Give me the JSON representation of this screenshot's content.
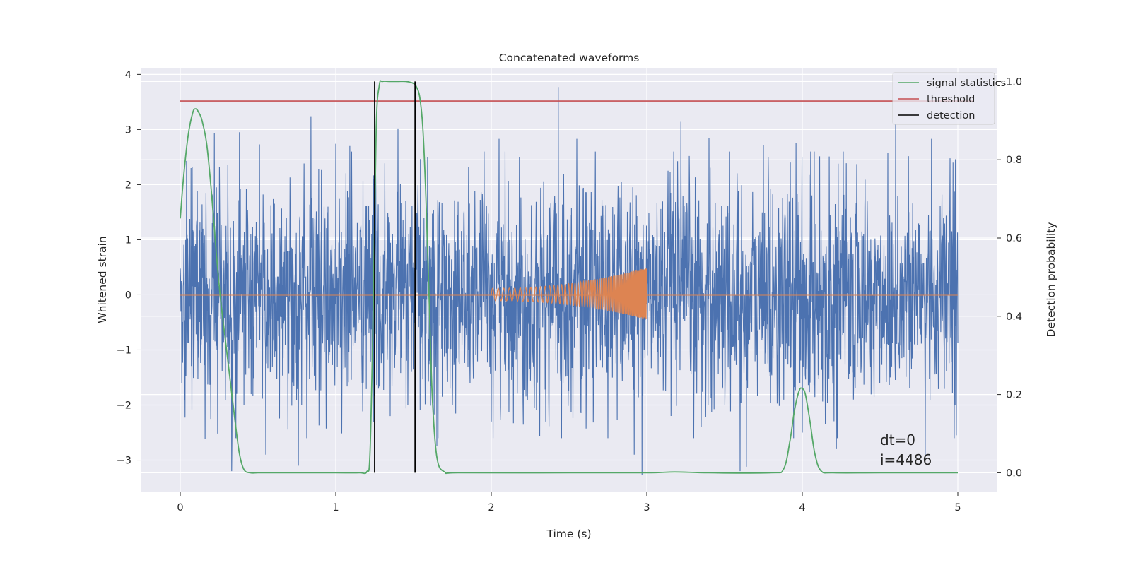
{
  "chart_data": {
    "type": "line",
    "title": "Concatenated waveforms",
    "xlabel": "Time (s)",
    "ylabel": "Whitened strain",
    "y2label": "Detection probability",
    "xlim": [
      -0.25,
      5.25
    ],
    "ylim": [
      -3.57,
      4.12
    ],
    "y2lim": [
      -0.048,
      1.035
    ],
    "x_ticks": [
      0,
      1,
      2,
      3,
      4,
      5
    ],
    "x_tick_labels": [
      "0",
      "1",
      "2",
      "3",
      "4",
      "5"
    ],
    "y_ticks": [
      -3,
      -2,
      -1,
      0,
      1,
      2,
      3,
      4
    ],
    "y_tick_labels": [
      "−3",
      "−2",
      "−1",
      "0",
      "1",
      "2",
      "3",
      "4"
    ],
    "y2_ticks": [
      0.0,
      0.2,
      0.4,
      0.6,
      0.8,
      1.0
    ],
    "y2_tick_labels": [
      "0.0",
      "0.2",
      "0.4",
      "0.6",
      "0.8",
      "1.0"
    ],
    "grid": true,
    "legend_position": "top-right",
    "noise": {
      "color": "#4c72b0",
      "x_range": [
        0,
        5
      ],
      "typical_amplitude": 1.0,
      "max": 3.77,
      "min": -3.27,
      "peaks": [
        {
          "x": 0.04,
          "y": 2.43
        },
        {
          "x": 0.07,
          "y": 2.3
        },
        {
          "x": 0.22,
          "y": 2.93
        },
        {
          "x": 0.38,
          "y": 2.95
        },
        {
          "x": 0.51,
          "y": 2.73
        },
        {
          "x": 0.84,
          "y": 3.24
        },
        {
          "x": 1.0,
          "y": 2.74
        },
        {
          "x": 1.09,
          "y": 2.7
        },
        {
          "x": 1.24,
          "y": 2.1
        },
        {
          "x": 1.4,
          "y": 3.02
        },
        {
          "x": 2.05,
          "y": 2.83
        },
        {
          "x": 2.43,
          "y": 3.77
        },
        {
          "x": 2.55,
          "y": 2.83
        },
        {
          "x": 3.22,
          "y": 3.14
        },
        {
          "x": 3.4,
          "y": 2.84
        },
        {
          "x": 3.75,
          "y": 2.72
        },
        {
          "x": 3.96,
          "y": 2.75
        },
        {
          "x": 4.23,
          "y": 2.38
        },
        {
          "x": 4.6,
          "y": 3.1
        },
        {
          "x": 4.83,
          "y": 2.83
        },
        {
          "x": 4.97,
          "y": 2.4
        }
      ],
      "troughs": [
        {
          "x": 0.01,
          "y": -1.6
        },
        {
          "x": 0.16,
          "y": -2.0
        },
        {
          "x": 0.16,
          "y": -2.62
        },
        {
          "x": 0.33,
          "y": -3.2
        },
        {
          "x": 0.55,
          "y": -2.9
        },
        {
          "x": 0.76,
          "y": -3.1
        },
        {
          "x": 0.78,
          "y": -2.0
        },
        {
          "x": 1.35,
          "y": -2.2
        },
        {
          "x": 1.65,
          "y": -2.75
        },
        {
          "x": 2.0,
          "y": -2.3
        },
        {
          "x": 2.35,
          "y": -2.3
        },
        {
          "x": 2.92,
          "y": -2.9
        },
        {
          "x": 2.97,
          "y": -3.27
        },
        {
          "x": 3.35,
          "y": -2.4
        },
        {
          "x": 3.6,
          "y": -3.2
        },
        {
          "x": 3.64,
          "y": -3.12
        },
        {
          "x": 4.0,
          "y": -2.5
        },
        {
          "x": 4.22,
          "y": -2.8
        },
        {
          "x": 4.79,
          "y": -2.9
        },
        {
          "x": 4.99,
          "y": -2.55
        }
      ]
    },
    "chirp": {
      "color": "#dd8452",
      "x_range": [
        2.0,
        3.0
      ],
      "start_amplitude": 0.12,
      "end_max": 0.5,
      "end_min": -0.45,
      "baseline": 0
    },
    "series": [
      {
        "name": "signal statistics",
        "color": "#55a868",
        "axis": "right",
        "x": [
          0,
          0.02,
          0.05,
          0.08,
          0.1,
          0.12,
          0.14,
          0.17,
          0.2,
          0.23,
          0.26,
          0.29,
          0.32,
          0.35,
          0.38,
          0.41,
          0.45,
          0.5,
          0.6,
          0.8,
          1.0,
          1.15,
          1.2,
          1.22,
          1.24,
          1.26,
          1.28,
          1.3,
          1.35,
          1.4,
          1.45,
          1.5,
          1.52,
          1.54,
          1.56,
          1.58,
          1.6,
          1.62,
          1.65,
          1.7,
          1.8,
          2.5,
          3.0,
          3.18,
          3.4,
          3.8,
          3.88,
          3.92,
          3.95,
          3.98,
          4.0,
          4.02,
          4.05,
          4.08,
          4.12,
          4.2,
          4.5,
          5.0
        ],
        "y": [
          0.65,
          0.75,
          0.86,
          0.92,
          0.93,
          0.92,
          0.9,
          0.84,
          0.72,
          0.57,
          0.44,
          0.34,
          0.24,
          0.14,
          0.05,
          0.008,
          0.0,
          0.0,
          0.0,
          0.0,
          0.0,
          0.0,
          0.003,
          0.05,
          0.4,
          0.88,
          0.99,
          1.0,
          1.0,
          1.0,
          1.0,
          0.995,
          0.985,
          0.96,
          0.88,
          0.7,
          0.45,
          0.2,
          0.04,
          0.002,
          0.0,
          0.0,
          0.0,
          0.002,
          0.0,
          0.0,
          0.01,
          0.08,
          0.16,
          0.21,
          0.215,
          0.2,
          0.13,
          0.05,
          0.005,
          0.0,
          0.0,
          0.0
        ]
      },
      {
        "name": "threshold",
        "color": "#c44e52",
        "axis": "right",
        "x": [
          0,
          5.1
        ],
        "y": [
          0.95,
          0.95
        ]
      },
      {
        "name": "detection",
        "color": "#000000",
        "axis": "right",
        "vlines": [
          1.25,
          1.51
        ],
        "y_range": [
          0,
          1
        ]
      }
    ],
    "annotations": [
      "dt=0",
      "i=4486"
    ]
  },
  "colors": {
    "plot_background": "#eaeaf2",
    "grid": "#ffffff",
    "noise": "#4c72b0",
    "chirp": "#dd8452",
    "stat": "#55a868",
    "threshold": "#c44e52",
    "detection": "#000000"
  }
}
